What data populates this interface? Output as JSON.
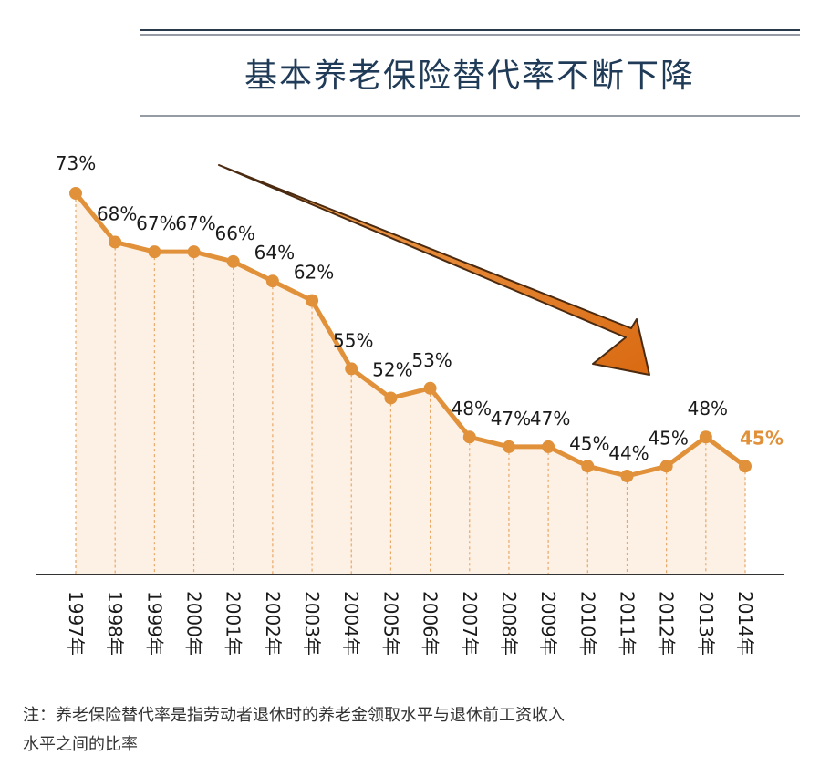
{
  "chart_data": {
    "type": "area",
    "title": "基本养老保险替代率不断下降",
    "categories": [
      "1997年",
      "1998年",
      "1999年",
      "2000年",
      "2001年",
      "2002年",
      "2003年",
      "2004年",
      "2005年",
      "2006年",
      "2007年",
      "2008年",
      "2009年",
      "2010年",
      "2011年",
      "2012年",
      "2013年",
      "2014年"
    ],
    "values": [
      73,
      68,
      67,
      67,
      66,
      64,
      62,
      55,
      52,
      53,
      48,
      47,
      47,
      45,
      44,
      45,
      48,
      45
    ],
    "data_labels": [
      "73%",
      "68%",
      "67%",
      "67%",
      "66%",
      "64%",
      "62%",
      "55%",
      "52%",
      "53%",
      "48%",
      "47%",
      "47%",
      "45%",
      "44%",
      "45%",
      "48%",
      "45%"
    ],
    "unit": "%",
    "trend_arrow": "downward",
    "colors": {
      "line": "#e0913a",
      "fill": "#fdf1e6",
      "drop_line": "#e8a866",
      "arrow": "#e87e20",
      "title": "#1f3b57",
      "last_label": "#e0913a"
    }
  },
  "note": {
    "line1": "注：养老保险替代率是指劳动者退休时的养老金领取水平与退休前工资收入",
    "line2": "水平之间的比率"
  }
}
